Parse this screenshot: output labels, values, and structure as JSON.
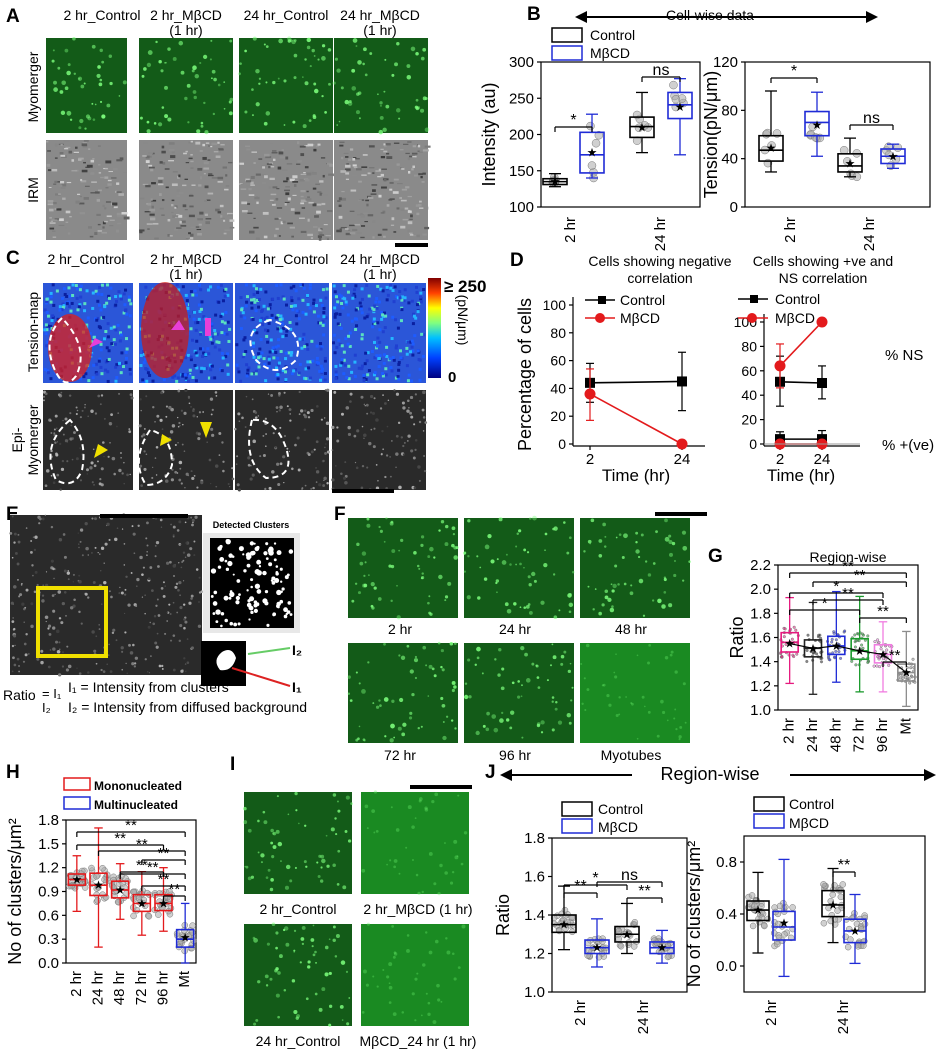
{
  "panels": {
    "A": {
      "letter": "A",
      "columns": [
        "2 hr_Control",
        "2 hr_MβCD\n(1 hr)",
        "24 hr_Control",
        "24 hr_MβCD\n(1 hr)"
      ],
      "row_labels": [
        "Myomerger",
        "IRM"
      ],
      "colors": {
        "myomerger_label": "#16c23c"
      }
    },
    "B": {
      "letter": "B",
      "header": "Cell-wise data",
      "legend": [
        "Control",
        "MβCD"
      ]
    },
    "C": {
      "letter": "C",
      "columns": [
        "2 hr_Control",
        "2 hr_MβCD\n(1 hr)",
        "24 hr_Control",
        "24 hr_MβCD\n(1 hr)"
      ],
      "row_labels": [
        "Tension-map",
        "Epi-\nMyomerger"
      ],
      "colorbar": {
        "max_label": "≥ 250",
        "min_label": "0",
        "unit": "(pN/μm)"
      }
    },
    "D": {
      "letter": "D",
      "titles": [
        "Cells showing negative\ncorrelation",
        "Cells showing +ve and\nNS correlation"
      ],
      "legend": [
        "Control",
        "MβCD"
      ],
      "annotations": [
        "% NS",
        "% +(ve)"
      ]
    },
    "E": {
      "letter": "E",
      "detected_title": "Detected Clusters",
      "i2": "I₂",
      "i1": "I₁",
      "ratio_text": "Ratio",
      "formula_text": "I₁ = Intensity from clusters",
      "formula_text2": "I₂ = Intensity from diffused background"
    },
    "F": {
      "letter": "F",
      "labels": [
        "2 hr",
        "24 hr",
        "48 hr",
        "72 hr",
        "96 hr",
        "Myotubes"
      ]
    },
    "G": {
      "letter": "G"
    },
    "H": {
      "letter": "H",
      "legend": [
        "Mononucleated",
        "Multinucleated"
      ]
    },
    "I": {
      "letter": "I",
      "labels": [
        "2 hr_Control",
        "2 hr_MβCD (1 hr)",
        "24 hr_Control",
        "MβCD_24 hr (1 hr)"
      ]
    },
    "J": {
      "letter": "J",
      "header": "Region-wise",
      "legend": [
        "Control",
        "MβCD"
      ]
    }
  },
  "colors": {
    "control": "#000000",
    "mbcd_blue": "#1f2bd6",
    "mbcd_red": "#e31a1c",
    "green": "#16c23c"
  },
  "chart_data": [
    {
      "id": "B-intensity",
      "type": "box",
      "ylabel": "Intensity (au)",
      "ylim": [
        100,
        300
      ],
      "yticks": [
        100,
        150,
        200,
        250,
        300
      ],
      "categories": [
        "2 hr",
        "24 hr"
      ],
      "series": [
        {
          "name": "Control",
          "boxes": [
            {
              "whisker_low": 128,
              "q1": 131,
              "median": 135,
              "q3": 139,
              "whisker_high": 146,
              "mean": 135
            },
            {
              "whisker_low": 175,
              "q1": 196,
              "median": 211,
              "q3": 224,
              "whisker_high": 258,
              "mean": 210
            }
          ]
        },
        {
          "name": "MβCD",
          "boxes": [
            {
              "whisker_low": 140,
              "q1": 147,
              "median": 172,
              "q3": 203,
              "whisker_high": 228,
              "mean": 175
            },
            {
              "whisker_low": 172,
              "q1": 222,
              "median": 241,
              "q3": 258,
              "whisker_high": 277,
              "mean": 238
            }
          ]
        }
      ],
      "significance": [
        "*",
        "ns"
      ]
    },
    {
      "id": "B-tension",
      "type": "box",
      "ylabel": "Tension(pN/μm)",
      "ylim": [
        0,
        120
      ],
      "yticks": [
        0,
        40,
        80,
        120
      ],
      "categories": [
        "2 hr",
        "24 hr"
      ],
      "series": [
        {
          "name": "Control",
          "boxes": [
            {
              "whisker_low": 29,
              "q1": 38,
              "median": 47,
              "q3": 59,
              "whisker_high": 96,
              "mean": 49
            },
            {
              "whisker_low": 25,
              "q1": 29,
              "median": 34,
              "q3": 44,
              "whisker_high": 57,
              "mean": 36
            }
          ]
        },
        {
          "name": "MβCD",
          "boxes": [
            {
              "whisker_low": 42,
              "q1": 59,
              "median": 70,
              "q3": 79,
              "whisker_high": 95,
              "mean": 68
            },
            {
              "whisker_low": 32,
              "q1": 36,
              "median": 42,
              "q3": 48,
              "whisker_high": 52,
              "mean": 42
            }
          ]
        }
      ],
      "significance": [
        "*",
        "ns"
      ]
    },
    {
      "id": "D-negative",
      "type": "line",
      "xlabel": "Time (hr)",
      "ylabel": "Percentage of cells",
      "x": [
        2,
        24
      ],
      "ylim": [
        0,
        100
      ],
      "yticks": [
        0,
        20,
        40,
        60,
        80,
        100
      ],
      "series": [
        {
          "name": "Control",
          "values": [
            44,
            45
          ],
          "err_low": [
            30,
            24
          ],
          "err_high": [
            58,
            66
          ]
        },
        {
          "name": "MβCD",
          "values": [
            36,
            0
          ],
          "err_low": [
            17,
            0
          ],
          "err_high": [
            54,
            0
          ]
        }
      ]
    },
    {
      "id": "D-positive-ns",
      "type": "line",
      "xlabel": "Time (hr)",
      "x": [
        2,
        24
      ],
      "ylim": [
        0,
        100
      ],
      "yticks": [
        0,
        20,
        40,
        60,
        80,
        100
      ],
      "series": [
        {
          "name": "Control",
          "values": [
            51,
            50
          ],
          "err_low": [
            31,
            37
          ],
          "err_high": [
            72,
            64
          ]
        },
        {
          "name": "MβCD",
          "values": [
            64,
            100
          ],
          "err_low": [
            46,
            100
          ],
          "err_high": [
            82,
            100
          ]
        },
        {
          "name": "Control",
          "values": [
            4,
            4
          ],
          "err_low": [
            0,
            0
          ],
          "err_high": [
            10,
            11
          ]
        },
        {
          "name": "MβCD",
          "values": [
            0,
            0
          ],
          "err_low": [
            0,
            0
          ],
          "err_high": [
            0,
            0
          ]
        }
      ]
    },
    {
      "id": "G",
      "type": "box",
      "title": "Region-wise",
      "ylabel": "Ratio",
      "ylim": [
        1.0,
        2.2
      ],
      "yticks": [
        1.0,
        1.2,
        1.4,
        1.6,
        1.8,
        2.0,
        2.2
      ],
      "categories": [
        "2 hr",
        "24 hr",
        "48 hr",
        "72 hr",
        "96 hr",
        "Mt"
      ],
      "box_colors": [
        "#e6197e",
        "#222222",
        "#1f2bd6",
        "#1a9a2c",
        "#f07ce0",
        "#8c8c8c"
      ],
      "boxes": [
        {
          "whisker_low": 1.22,
          "q1": 1.48,
          "median": 1.56,
          "q3": 1.64,
          "whisker_high": 1.93,
          "mean": 1.55
        },
        {
          "whisker_low": 1.13,
          "q1": 1.44,
          "median": 1.51,
          "q3": 1.58,
          "whisker_high": 1.89,
          "mean": 1.51
        },
        {
          "whisker_low": 1.23,
          "q1": 1.46,
          "median": 1.53,
          "q3": 1.61,
          "whisker_high": 1.98,
          "mean": 1.53
        },
        {
          "whisker_low": 1.15,
          "q1": 1.42,
          "median": 1.49,
          "q3": 1.59,
          "whisker_high": 1.94,
          "mean": 1.49
        },
        {
          "whisker_low": 1.15,
          "q1": 1.39,
          "median": 1.46,
          "q3": 1.54,
          "whisker_high": 1.73,
          "mean": 1.46
        },
        {
          "whisker_low": 1.03,
          "q1": 1.24,
          "median": 1.31,
          "q3": 1.38,
          "whisker_high": 1.65,
          "mean": 1.31
        }
      ],
      "trend_line": true,
      "significance": [
        "**",
        "**",
        "*",
        "**",
        "*",
        "**",
        "**"
      ]
    },
    {
      "id": "H",
      "type": "box",
      "ylabel": "No of clusters/μm²",
      "ylim": [
        0.0,
        1.8
      ],
      "yticks": [
        0.0,
        0.3,
        0.6,
        0.9,
        1.2,
        1.5,
        1.8
      ],
      "categories": [
        "2 hr",
        "24 hr",
        "48 hr",
        "72 hr",
        "96 hr",
        "Mt"
      ],
      "series_of_box": [
        "Mononucleated",
        "Mononucleated",
        "Mononucleated",
        "Mononucleated",
        "Mononucleated",
        "Multinucleated"
      ],
      "boxes": [
        {
          "whisker_low": 0.65,
          "q1": 0.98,
          "median": 1.05,
          "q3": 1.12,
          "whisker_high": 1.35,
          "mean": 1.05
        },
        {
          "whisker_low": 0.2,
          "q1": 0.85,
          "median": 0.98,
          "q3": 1.13,
          "whisker_high": 1.7,
          "mean": 0.98
        },
        {
          "whisker_low": 0.55,
          "q1": 0.82,
          "median": 0.92,
          "q3": 1.03,
          "whisker_high": 1.25,
          "mean": 0.92
        },
        {
          "whisker_low": 0.35,
          "q1": 0.65,
          "median": 0.75,
          "q3": 0.86,
          "whisker_high": 1.15,
          "mean": 0.75
        },
        {
          "whisker_low": 0.4,
          "q1": 0.66,
          "median": 0.75,
          "q3": 0.86,
          "whisker_high": 1.2,
          "mean": 0.75
        },
        {
          "whisker_low": 0.0,
          "q1": 0.2,
          "median": 0.3,
          "q3": 0.42,
          "whisker_high": 0.75,
          "mean": 0.32
        }
      ],
      "significance": [
        "**",
        "**",
        "**",
        "**",
        "**",
        "**",
        "**",
        "**"
      ]
    },
    {
      "id": "J-ratio",
      "type": "box",
      "ylabel": "Ratio",
      "ylim": [
        1.0,
        1.8
      ],
      "yticks": [
        1.0,
        1.2,
        1.4,
        1.6,
        1.8
      ],
      "categories": [
        "2 hr",
        "24 hr"
      ],
      "series": [
        {
          "name": "Control",
          "boxes": [
            {
              "whisker_low": 1.22,
              "q1": 1.31,
              "median": 1.35,
              "q3": 1.4,
              "whisker_high": 1.55,
              "mean": 1.35
            },
            {
              "whisker_low": 1.2,
              "q1": 1.26,
              "median": 1.3,
              "q3": 1.34,
              "whisker_high": 1.46,
              "mean": 1.3
            }
          ]
        },
        {
          "name": "MβCD",
          "boxes": [
            {
              "whisker_low": 1.13,
              "q1": 1.2,
              "median": 1.23,
              "q3": 1.27,
              "whisker_high": 1.38,
              "mean": 1.23
            },
            {
              "whisker_low": 1.15,
              "q1": 1.2,
              "median": 1.23,
              "q3": 1.26,
              "whisker_high": 1.32,
              "mean": 1.23
            }
          ]
        }
      ],
      "significance": [
        "**",
        "*",
        "ns",
        "**"
      ]
    },
    {
      "id": "J-clusters",
      "type": "box",
      "ylabel": "No of clusters/μm²",
      "ylim": [
        -0.2,
        1.0
      ],
      "yticks": [
        0.0,
        0.4,
        0.8
      ],
      "categories": [
        "2 hr",
        "24 hr"
      ],
      "series": [
        {
          "name": "Control",
          "boxes": [
            {
              "whisker_low": 0.1,
              "q1": 0.35,
              "median": 0.43,
              "q3": 0.5,
              "whisker_high": 0.72,
              "mean": 0.43
            },
            {
              "whisker_low": 0.18,
              "q1": 0.38,
              "median": 0.47,
              "q3": 0.58,
              "whisker_high": 0.75,
              "mean": 0.47
            }
          ]
        },
        {
          "name": "MβCD",
          "boxes": [
            {
              "whisker_low": -0.08,
              "q1": 0.2,
              "median": 0.3,
              "q3": 0.42,
              "whisker_high": 0.82,
              "mean": 0.33
            },
            {
              "whisker_low": 0.02,
              "q1": 0.18,
              "median": 0.27,
              "q3": 0.36,
              "whisker_high": 0.55,
              "mean": 0.27
            }
          ]
        }
      ],
      "significance": [
        "**"
      ]
    }
  ]
}
